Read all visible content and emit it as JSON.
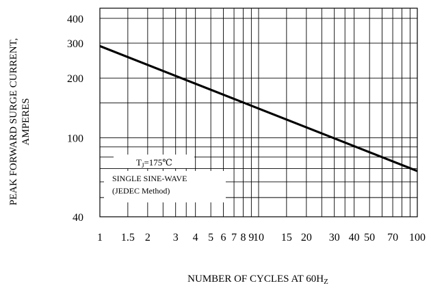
{
  "chart_data": {
    "type": "line",
    "title": "",
    "xlabel": {
      "main": "NUMBER OF CYCLES AT 60H",
      "sub": "Z"
    },
    "ylabel": [
      "PEAK FORWARD SURGE CURRENT,",
      "AMPERES"
    ],
    "xscale": "log",
    "yscale": "log",
    "xlim": [
      1,
      100
    ],
    "ylim": [
      40,
      450
    ],
    "grid": true,
    "x_ticks": [
      {
        "value": 1,
        "label": "1"
      },
      {
        "value": 1.5,
        "label": "1.5"
      },
      {
        "value": 2,
        "label": "2"
      },
      {
        "value": 3,
        "label": "3"
      },
      {
        "value": 4,
        "label": "4"
      },
      {
        "value": 5,
        "label": "5"
      },
      {
        "value": 6,
        "label": "6"
      },
      {
        "value": 7,
        "label": "7"
      },
      {
        "value": 8,
        "label": "8"
      },
      {
        "value": 9,
        "label": "9"
      },
      {
        "value": 10,
        "label": "10"
      },
      {
        "value": 15,
        "label": "15"
      },
      {
        "value": 20,
        "label": "20"
      },
      {
        "value": 30,
        "label": "30"
      },
      {
        "value": 40,
        "label": "40"
      },
      {
        "value": 50,
        "label": "50"
      },
      {
        "value": 70,
        "label": "70"
      },
      {
        "value": 100,
        "label": "100"
      }
    ],
    "y_ticks": [
      {
        "value": 40,
        "label": "40"
      },
      {
        "value": 100,
        "label": "100"
      },
      {
        "value": 200,
        "label": "200"
      },
      {
        "value": 300,
        "label": "300"
      },
      {
        "value": 400,
        "label": "400"
      }
    ],
    "x_grid": [
      1,
      1.5,
      2,
      2.5,
      3,
      3.5,
      4,
      5,
      6,
      7,
      8,
      9,
      10,
      15,
      20,
      25,
      30,
      35,
      40,
      50,
      60,
      70,
      80,
      90,
      100
    ],
    "y_grid": [
      40,
      50,
      60,
      70,
      80,
      90,
      100,
      150,
      200,
      300,
      400,
      450
    ],
    "series": [
      {
        "x": [
          1,
          100
        ],
        "y": [
          290,
          68
        ]
      }
    ],
    "annotations": {
      "tj_main": "T",
      "tj_sub": "J",
      "tj_value": "=175℃",
      "method_line1": "SINGLE SINE-WAVE",
      "method_line2": "(JEDEC Method)"
    }
  }
}
